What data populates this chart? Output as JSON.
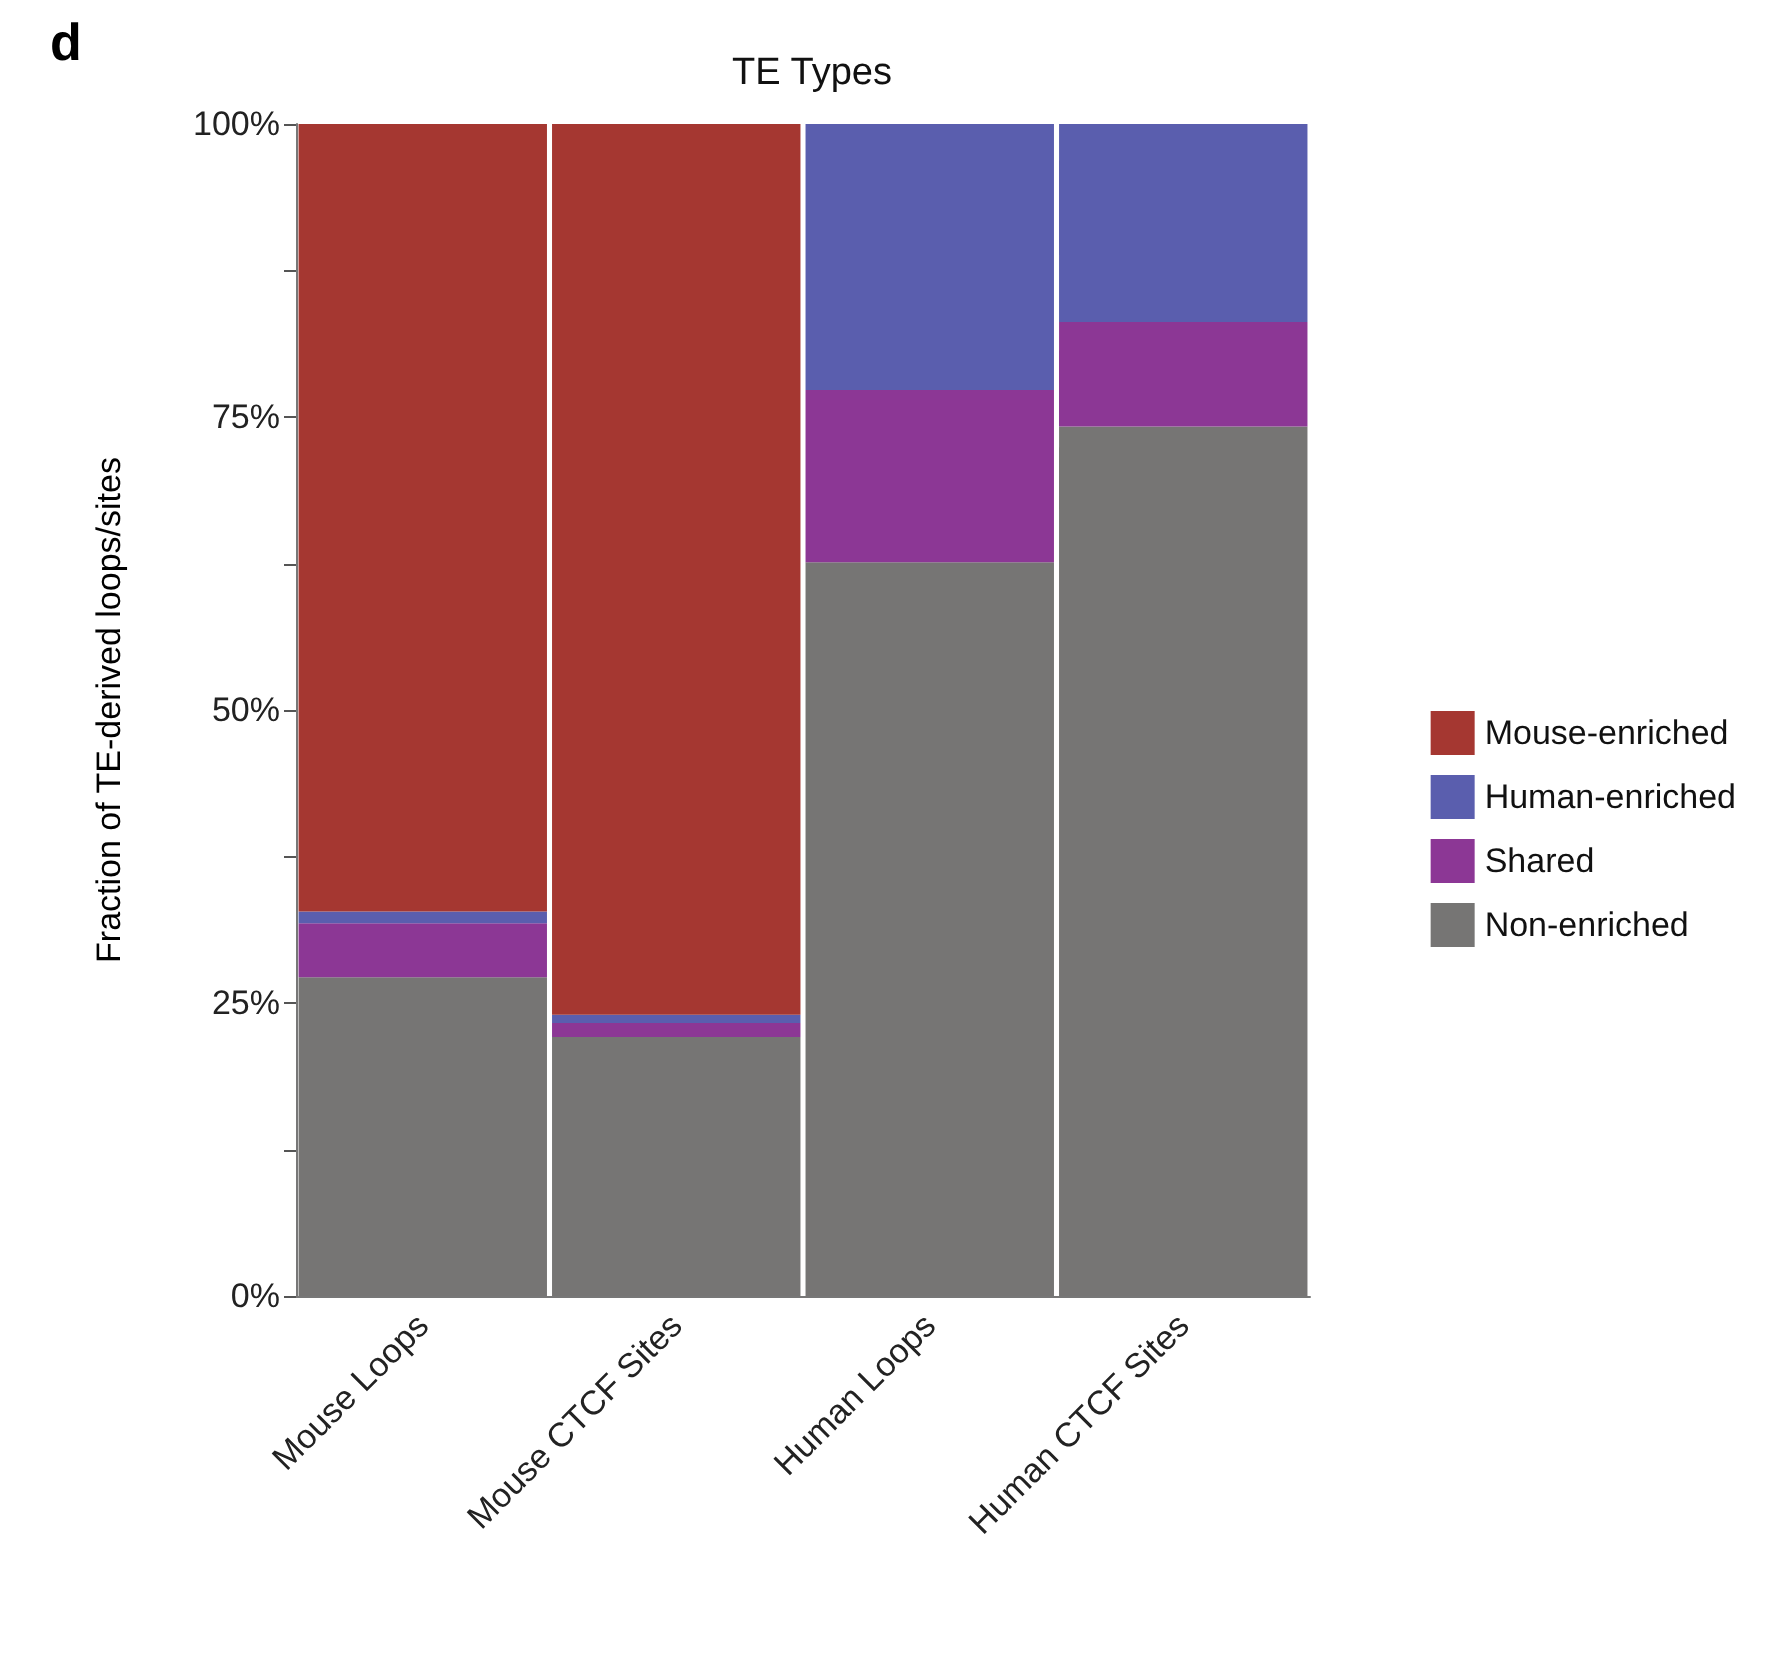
{
  "chart_data": {
    "type": "bar",
    "title": "TE Types",
    "ylabel": "Fraction of TE-derived loops/sites",
    "annotations": [
      "d"
    ],
    "categories": [
      "Mouse Loops",
      "Mouse CTCF Sites",
      "Human Loops",
      "Human CTCF Sites"
    ],
    "stacked": true,
    "series": [
      {
        "name": "Non-enriched",
        "color": "#767574",
        "values": [
          27.2,
          22.1,
          62.6,
          74.2
        ]
      },
      {
        "name": "Shared",
        "color": "#8c3795",
        "values": [
          4.6,
          1.2,
          14.7,
          8.9
        ]
      },
      {
        "name": "Human-enriched",
        "color": "#5a5eae",
        "values": [
          1.0,
          0.7,
          22.7,
          16.9
        ]
      },
      {
        "name": "Mouse-enriched",
        "color": "#a53731",
        "values": [
          67.2,
          76.0,
          0,
          0
        ]
      }
    ],
    "ylim": [
      0,
      100
    ],
    "yticks": [
      {
        "value": 0,
        "label": "0%"
      },
      {
        "value": 12.5,
        "label": null
      },
      {
        "value": 25,
        "label": "25%"
      },
      {
        "value": 37.5,
        "label": null
      },
      {
        "value": 50,
        "label": "50%"
      },
      {
        "value": 62.5,
        "label": null
      },
      {
        "value": 75,
        "label": "75%"
      },
      {
        "value": 87.5,
        "label": null
      },
      {
        "value": 100,
        "label": "100%"
      }
    ],
    "grid": false,
    "legend": "right"
  }
}
